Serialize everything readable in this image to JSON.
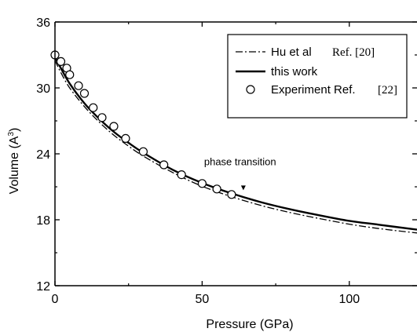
{
  "chart_data": {
    "type": "line",
    "xlabel": "Pressure (GPa)",
    "ylabel": "Volume (A",
    "ylabel_sup": "3",
    "ylabel_close": ")",
    "xlim": [
      0,
      123
    ],
    "ylim": [
      12,
      36
    ],
    "x_ticks": [
      0,
      50,
      100
    ],
    "y_ticks": [
      12,
      18,
      24,
      30,
      36
    ],
    "annotation": {
      "text": "phase transition",
      "x": 64,
      "y": 20.4
    },
    "legend": {
      "placement": "top-right",
      "entries": [
        {
          "label": "Hu et al",
          "ref": "Ref. [20]",
          "style": "dash-dot"
        },
        {
          "label": "this work",
          "ref": "",
          "style": "solid"
        },
        {
          "label": "Experiment Ref.",
          "ref": "[22]",
          "style": "open-circle"
        }
      ]
    },
    "series": [
      {
        "name": "Hu et al Ref. [20]",
        "style": "dash-dot",
        "x": [
          0,
          2,
          5,
          10,
          15,
          20,
          25,
          30,
          40,
          50,
          60,
          70,
          80,
          90,
          100,
          110,
          123
        ],
        "y": [
          32.5,
          31.4,
          30.0,
          28.3,
          26.9,
          25.7,
          24.7,
          23.8,
          22.3,
          21.05,
          20.1,
          19.3,
          18.65,
          18.1,
          17.6,
          17.2,
          16.8
        ]
      },
      {
        "name": "this work",
        "style": "solid",
        "x": [
          0,
          2,
          5,
          10,
          15,
          20,
          25,
          30,
          40,
          50,
          60,
          70,
          80,
          90,
          100,
          110,
          123
        ],
        "y": [
          32.8,
          31.8,
          30.4,
          28.6,
          27.2,
          26.0,
          25.0,
          24.1,
          22.55,
          21.35,
          20.4,
          19.6,
          18.95,
          18.4,
          17.9,
          17.55,
          17.1
        ]
      },
      {
        "name": "Experiment Ref. [22]",
        "style": "open-circle",
        "x": [
          0,
          2,
          4,
          5,
          8,
          10,
          13,
          16,
          20,
          24,
          30,
          37,
          43,
          50,
          55,
          60
        ],
        "y": [
          33.0,
          32.4,
          31.8,
          31.2,
          30.2,
          29.5,
          28.2,
          27.3,
          26.5,
          25.4,
          24.2,
          23.0,
          22.1,
          21.3,
          20.8,
          20.3
        ]
      }
    ]
  }
}
